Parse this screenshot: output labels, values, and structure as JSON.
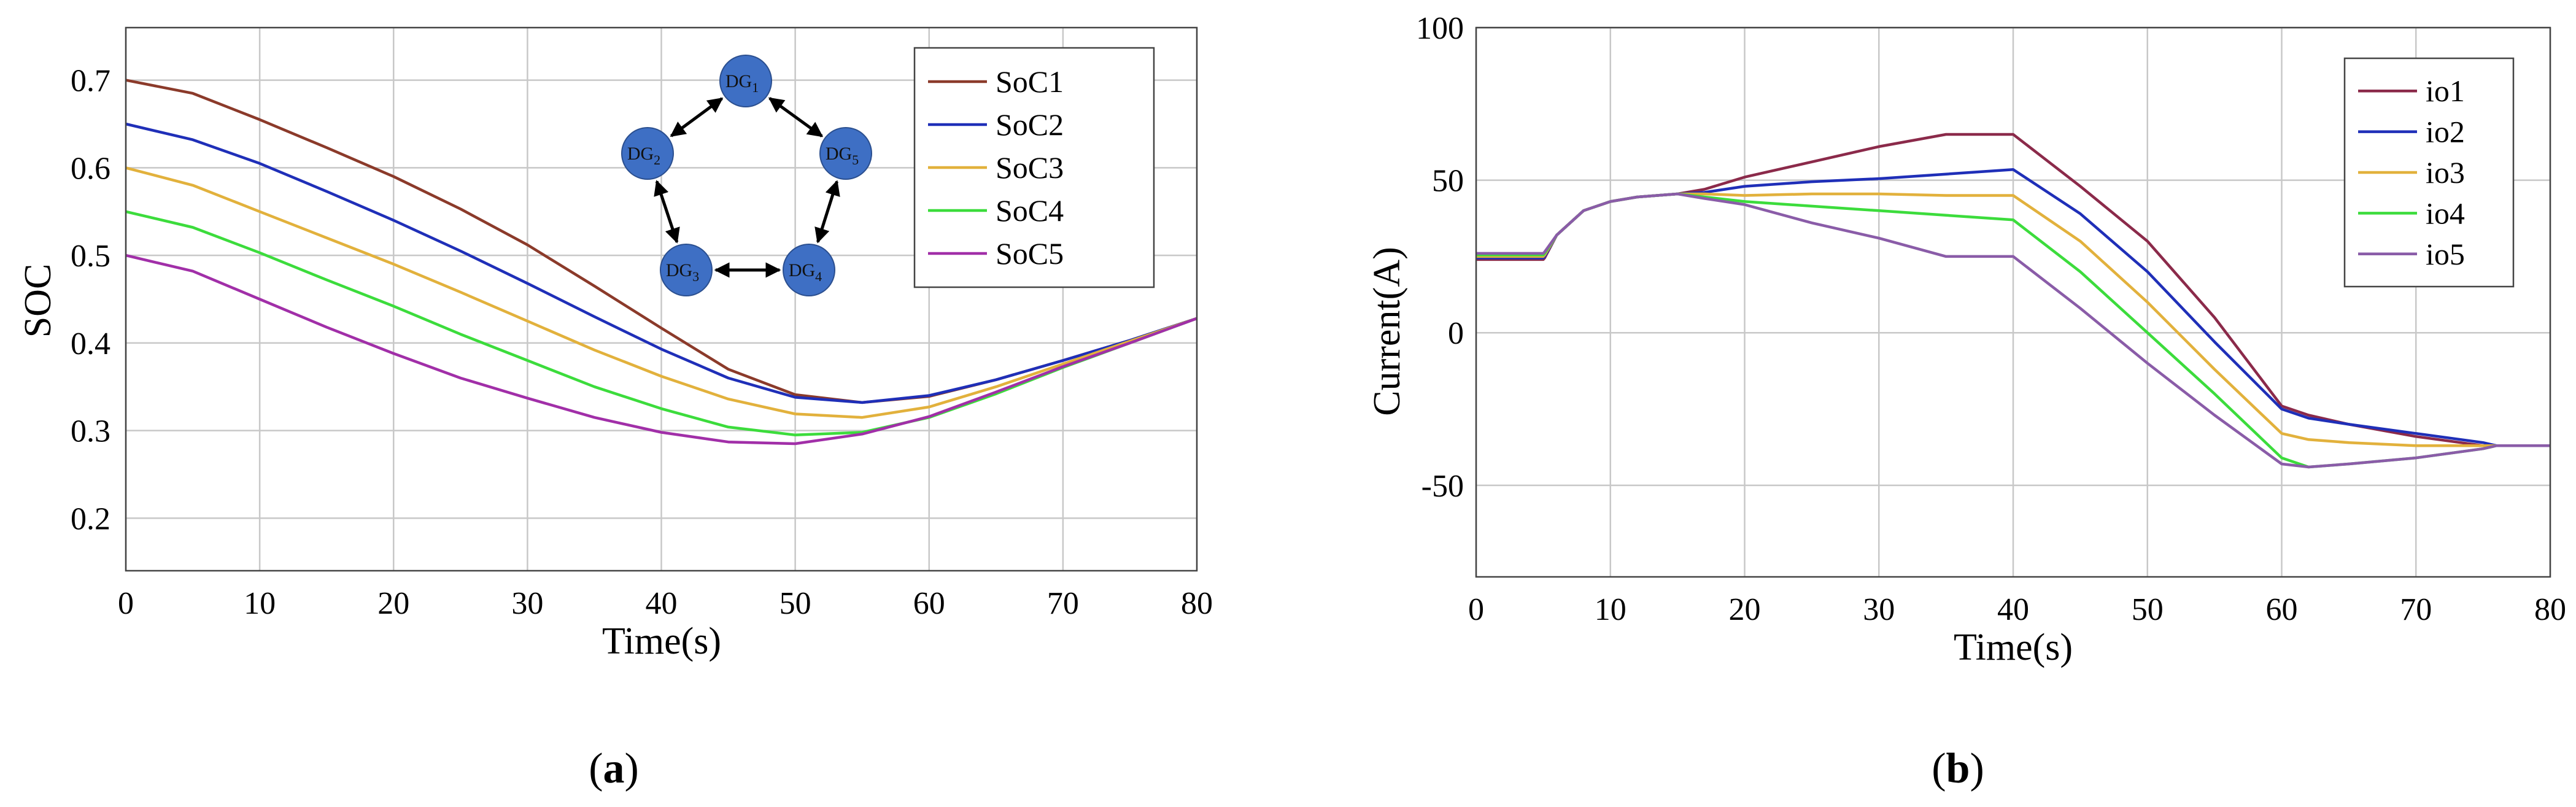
{
  "chart_data": [
    {
      "type": "line",
      "xlabel": "Time(s)",
      "ylabel": "SOC",
      "xlim": [
        0,
        80
      ],
      "ylim": [
        0.14,
        0.76
      ],
      "xticks": [
        0,
        10,
        20,
        30,
        40,
        50,
        60,
        70,
        80
      ],
      "yticks": [
        0.2,
        0.3,
        0.4,
        0.5,
        0.6,
        0.7
      ],
      "xtick_labels": [
        "0",
        "10",
        "20",
        "30",
        "40",
        "50",
        "60",
        "70",
        "80"
      ],
      "ytick_labels": [
        "0.2",
        "0.3",
        "0.4",
        "0.5",
        "0.6",
        "0.7"
      ],
      "grid": true,
      "legend_position": "top-right",
      "caption_prefix": "(",
      "caption": "a",
      "caption_suffix": ")",
      "series": [
        {
          "name": "SoC1",
          "color": "#8B3A2A",
          "x": [
            0,
            5,
            10,
            15,
            20,
            25,
            30,
            35,
            40,
            45,
            50,
            55,
            60,
            65,
            70,
            75,
            80
          ],
          "y": [
            0.7,
            0.685,
            0.655,
            0.623,
            0.59,
            0.553,
            0.512,
            0.465,
            0.417,
            0.37,
            0.341,
            0.332,
            0.339,
            0.358,
            0.38,
            0.403,
            0.428
          ]
        },
        {
          "name": "SoC2",
          "color": "#1F2FB8",
          "x": [
            0,
            5,
            10,
            15,
            20,
            25,
            30,
            35,
            40,
            45,
            50,
            55,
            60,
            65,
            70,
            75,
            80
          ],
          "y": [
            0.65,
            0.632,
            0.605,
            0.573,
            0.54,
            0.505,
            0.468,
            0.43,
            0.393,
            0.36,
            0.338,
            0.332,
            0.34,
            0.358,
            0.38,
            0.403,
            0.428
          ]
        },
        {
          "name": "SoC3",
          "color": "#E2B13C",
          "x": [
            0,
            5,
            10,
            15,
            20,
            25,
            30,
            35,
            40,
            45,
            50,
            55,
            60,
            65,
            70,
            75,
            80
          ],
          "y": [
            0.6,
            0.58,
            0.55,
            0.52,
            0.49,
            0.458,
            0.425,
            0.392,
            0.362,
            0.336,
            0.319,
            0.315,
            0.327,
            0.35,
            0.376,
            0.402,
            0.428
          ]
        },
        {
          "name": "SoC4",
          "color": "#3CDC3C",
          "x": [
            0,
            5,
            10,
            15,
            20,
            25,
            30,
            35,
            40,
            45,
            50,
            55,
            60,
            65,
            70,
            75,
            80
          ],
          "y": [
            0.55,
            0.532,
            0.503,
            0.472,
            0.442,
            0.41,
            0.38,
            0.35,
            0.325,
            0.304,
            0.295,
            0.298,
            0.315,
            0.342,
            0.372,
            0.4,
            0.428
          ]
        },
        {
          "name": "SoC5",
          "color": "#A12FA8",
          "x": [
            0,
            5,
            10,
            15,
            20,
            25,
            30,
            35,
            40,
            45,
            50,
            55,
            60,
            65,
            70,
            75,
            80
          ],
          "y": [
            0.5,
            0.482,
            0.45,
            0.418,
            0.388,
            0.36,
            0.337,
            0.315,
            0.298,
            0.287,
            0.285,
            0.296,
            0.316,
            0.344,
            0.373,
            0.4,
            0.428
          ]
        }
      ],
      "inset_diagram": {
        "nodes": [
          "DG1",
          "DG2",
          "DG3",
          "DG4",
          "DG5"
        ],
        "node_color": "#3E6FC4",
        "edges": [
          [
            "DG1",
            "DG2"
          ],
          [
            "DG1",
            "DG5"
          ],
          [
            "DG2",
            "DG3"
          ],
          [
            "DG3",
            "DG4"
          ],
          [
            "DG4",
            "DG5"
          ]
        ]
      }
    },
    {
      "type": "line",
      "xlabel": "Time(s)",
      "ylabel": "Current(A)",
      "xlim": [
        0,
        80
      ],
      "ylim": [
        -80,
        100
      ],
      "xticks": [
        0,
        10,
        20,
        30,
        40,
        50,
        60,
        70,
        80
      ],
      "yticks": [
        -50,
        0,
        50,
        100
      ],
      "xtick_labels": [
        "0",
        "10",
        "20",
        "30",
        "40",
        "50",
        "60",
        "70",
        "80"
      ],
      "ytick_labels": [
        "-50",
        "0",
        "50",
        "100"
      ],
      "grid": true,
      "legend_position": "top-right",
      "caption_prefix": "(",
      "caption": "b",
      "caption_suffix": ")",
      "series": [
        {
          "name": "io1",
          "color": "#8B2A4A",
          "x": [
            0,
            5,
            5.1,
            6,
            8,
            10,
            12,
            15,
            17,
            20,
            25,
            30,
            35,
            40,
            45,
            50,
            55,
            60,
            62,
            65,
            70,
            75,
            76,
            80
          ],
          "y": [
            24,
            24,
            24.5,
            32,
            40,
            43,
            44.5,
            45.5,
            47,
            51,
            56,
            61,
            65,
            65,
            48,
            30,
            5,
            -24,
            -27,
            -30,
            -34,
            -37,
            -37,
            -37
          ]
        },
        {
          "name": "io2",
          "color": "#1F2FB8",
          "x": [
            0,
            5,
            5.1,
            6,
            8,
            10,
            12,
            15,
            17,
            20,
            25,
            30,
            35,
            40,
            45,
            50,
            55,
            60,
            62,
            65,
            70,
            75,
            76,
            80
          ],
          "y": [
            24.5,
            24.5,
            25,
            32,
            40,
            43,
            44.5,
            45.5,
            46,
            48,
            49.5,
            50.5,
            52,
            53.5,
            39,
            20,
            -3,
            -25,
            -28,
            -30,
            -33,
            -36,
            -37,
            -37
          ]
        },
        {
          "name": "io3",
          "color": "#E2B13C",
          "x": [
            0,
            5,
            5.1,
            6,
            8,
            10,
            12,
            15,
            17,
            20,
            25,
            30,
            35,
            40,
            45,
            50,
            55,
            60,
            62,
            65,
            70,
            75,
            76,
            80
          ],
          "y": [
            25,
            25,
            25.5,
            32,
            40,
            43,
            44.5,
            45.5,
            45.5,
            45,
            45.5,
            45.5,
            45,
            45,
            30,
            10,
            -12,
            -33,
            -35,
            -36,
            -37,
            -37,
            -37,
            -37
          ]
        },
        {
          "name": "io4",
          "color": "#3CDC3C",
          "x": [
            0,
            5,
            5.1,
            6,
            8,
            10,
            12,
            15,
            17,
            20,
            25,
            30,
            35,
            40,
            45,
            50,
            55,
            60,
            62,
            65,
            70,
            75,
            76,
            80
          ],
          "y": [
            25.5,
            25.5,
            26,
            32,
            40,
            43,
            44.5,
            45.5,
            44.5,
            43,
            41.5,
            40,
            38.5,
            37,
            20,
            0,
            -20,
            -41,
            -44,
            -43,
            -41,
            -38,
            -37,
            -37
          ]
        },
        {
          "name": "io5",
          "color": "#8A5CA8",
          "x": [
            0,
            5,
            5.1,
            6,
            8,
            10,
            12,
            15,
            17,
            20,
            25,
            30,
            35,
            40,
            45,
            50,
            55,
            60,
            62,
            65,
            70,
            75,
            76,
            80
          ],
          "y": [
            26,
            26,
            26.5,
            32,
            40,
            43,
            44.5,
            45.5,
            44,
            42,
            36,
            31,
            25,
            25,
            8,
            -10,
            -27,
            -43,
            -44,
            -43,
            -41,
            -38,
            -37,
            -37
          ]
        }
      ]
    }
  ]
}
